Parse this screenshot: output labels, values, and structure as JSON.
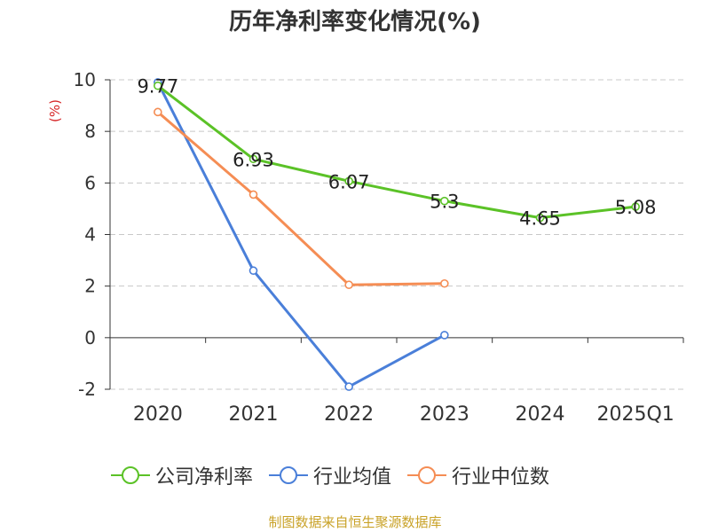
{
  "chart_data": {
    "type": "line",
    "title": "历年净利率变化情况(%)",
    "ylabel": "(%)",
    "categories": [
      "2020",
      "2021",
      "2022",
      "2023",
      "2024",
      "2025Q1"
    ],
    "ylim": [
      -2,
      10
    ],
    "yticks": [
      10,
      8,
      6,
      4,
      2,
      0,
      -2
    ],
    "grid": true,
    "legend_position": "bottom",
    "series": [
      {
        "name": "公司净利率",
        "color": "#5bc227",
        "values": [
          9.77,
          6.93,
          6.07,
          5.3,
          4.65,
          5.08
        ],
        "labels": [
          "9.77",
          "6.93",
          "6.07",
          "5.3",
          "4.65",
          "5.08"
        ]
      },
      {
        "name": "行业均值",
        "color": "#4a7fd9",
        "values": [
          9.9,
          2.6,
          -1.9,
          0.1,
          null,
          null
        ]
      },
      {
        "name": "行业中位数",
        "color": "#f58d54",
        "values": [
          8.75,
          5.55,
          2.05,
          2.1,
          null,
          null
        ]
      }
    ],
    "source": "制图数据来自恒生聚源数据库"
  }
}
